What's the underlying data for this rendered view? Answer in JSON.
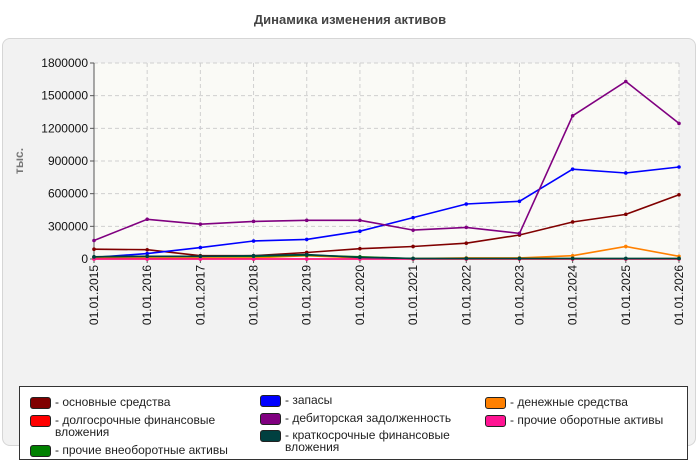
{
  "title": "Динамика изменения активов",
  "chart_data": {
    "type": "line",
    "title": "Динамика изменения активов",
    "ylabel": "тыс.",
    "xlabel": "",
    "ylim": [
      0,
      1800000
    ],
    "yticks": [
      "0",
      "300000",
      "600000",
      "900000",
      "1200000",
      "1500000",
      "1800000"
    ],
    "categories": [
      "01.01.2015",
      "01.01.2016",
      "01.01.2017",
      "01.01.2018",
      "01.01.2019",
      "01.01.2020",
      "01.01.2021",
      "01.01.2022",
      "01.01.2023",
      "01.01.2024",
      "01.01.2025",
      "01.01.2026"
    ],
    "grid": true,
    "legend_position": "bottom",
    "series": [
      {
        "name": "- основные средства",
        "color": "#800000",
        "values": [
          90000,
          85000,
          30000,
          30000,
          60000,
          95000,
          115000,
          145000,
          220000,
          340000,
          410000,
          590000
        ]
      },
      {
        "name": "- запасы",
        "color": "#0000ff",
        "values": [
          15000,
          50000,
          105000,
          165000,
          180000,
          255000,
          380000,
          505000,
          530000,
          825000,
          790000,
          845000
        ]
      },
      {
        "name": "- денежные средства",
        "color": "#ff8000",
        "values": [
          10000,
          10000,
          10000,
          10000,
          30000,
          10000,
          5000,
          10000,
          10000,
          30000,
          115000,
          25000
        ]
      },
      {
        "name": "- долгосрочные финансовые вложения",
        "color": "#ff0000",
        "values": [
          0,
          0,
          0,
          0,
          0,
          0,
          0,
          0,
          0,
          0,
          0,
          0
        ]
      },
      {
        "name": "- дебиторская задолженность",
        "color": "#800080",
        "values": [
          170000,
          365000,
          320000,
          345000,
          355000,
          355000,
          265000,
          290000,
          235000,
          1315000,
          1630000,
          1245000
        ]
      },
      {
        "name": "- прочие оборотные активы",
        "color": "#ff1493",
        "values": [
          0,
          0,
          0,
          0,
          0,
          0,
          0,
          0,
          0,
          0,
          0,
          0
        ]
      },
      {
        "name": "- прочие внеоборотные активы",
        "color": "#008000",
        "values": [
          20000,
          25000,
          25000,
          25000,
          35000,
          20000,
          5000,
          5000,
          5000,
          5000,
          5000,
          5000
        ]
      },
      {
        "name": "- краткосрочные финансовые вложения",
        "color": "#004040",
        "values": [
          20000,
          25000,
          25000,
          30000,
          40000,
          15000,
          5000,
          5000,
          5000,
          5000,
          5000,
          5000
        ]
      }
    ]
  }
}
